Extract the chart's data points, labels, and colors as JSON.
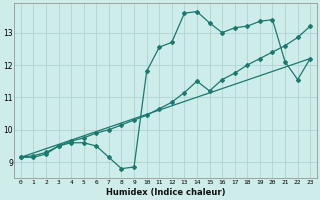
{
  "xlabel": "Humidex (Indice chaleur)",
  "background_color": "#ceecea",
  "grid_color": "#aed4d0",
  "line_color": "#1a7a6e",
  "xlim": [
    -0.5,
    23.5
  ],
  "ylim": [
    8.5,
    13.9
  ],
  "yticks": [
    9,
    10,
    11,
    12,
    13
  ],
  "xticks": [
    0,
    1,
    2,
    3,
    4,
    5,
    6,
    7,
    8,
    9,
    10,
    11,
    12,
    13,
    14,
    15,
    16,
    17,
    18,
    19,
    20,
    21,
    22,
    23
  ],
  "series1_x": [
    0,
    1,
    2,
    3,
    4,
    5,
    6,
    7,
    8,
    9,
    10,
    11,
    12,
    13,
    14,
    15,
    16,
    17,
    18,
    19,
    20,
    21,
    22,
    23
  ],
  "series1_y": [
    9.15,
    9.15,
    9.25,
    9.5,
    9.6,
    9.6,
    9.5,
    9.15,
    8.8,
    8.85,
    11.8,
    12.55,
    12.7,
    13.6,
    13.65,
    13.3,
    13.0,
    13.15,
    13.2,
    13.35,
    13.4,
    12.1,
    11.55,
    12.2
  ],
  "series2_x": [
    0,
    1,
    2,
    3,
    4,
    5,
    6,
    7,
    8,
    9,
    10,
    11,
    12,
    13,
    14,
    15,
    16,
    17,
    18,
    19,
    20,
    21,
    22,
    23
  ],
  "series2_y": [
    9.15,
    9.2,
    9.3,
    9.5,
    9.65,
    9.75,
    9.9,
    10.0,
    10.15,
    10.3,
    10.45,
    10.65,
    10.85,
    11.15,
    11.5,
    11.2,
    11.55,
    11.75,
    12.0,
    12.2,
    12.4,
    12.6,
    12.85,
    13.2
  ],
  "series3_x": [
    0,
    23
  ],
  "series3_y": [
    9.15,
    12.2
  ]
}
